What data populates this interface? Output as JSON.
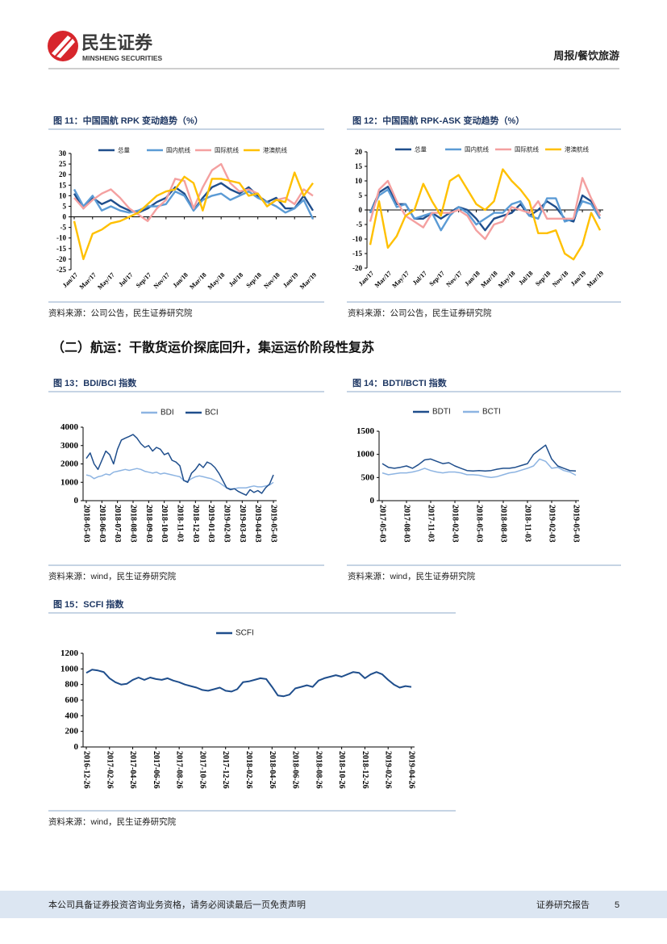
{
  "header": {
    "brand": "民生证券",
    "brand_en": "MINSHENG SECURITIES",
    "section": "周报/餐饮旅游"
  },
  "heading": "（二）航运：干散货运价探底回升，集运运价阶段性复苏",
  "chart_data": [
    {
      "type": "line",
      "title": "图 11：中国国航 RPK 变动趋势（%）",
      "source": "资料来源：公司公告，民生证券研究院",
      "categories": [
        "Jan/17",
        null,
        "Mar/17",
        null,
        "May/17",
        null,
        "Jul/17",
        null,
        "Sep/17",
        null,
        "Nov/17",
        null,
        "Jan/18",
        null,
        "Mar/18",
        null,
        "May/18",
        null,
        "Jul/18",
        null,
        "Sep/18",
        null,
        "Nov/18",
        null,
        "Jan/19",
        null,
        "Mar/19"
      ],
      "ylim": [
        -25,
        30
      ],
      "yticks": [
        -25,
        -20,
        -15,
        -10,
        -5,
        0,
        5,
        10,
        15,
        20,
        25,
        30
      ],
      "series": [
        {
          "name": "总量",
          "color": "#1f4e8c",
          "values": [
            11,
            4,
            9,
            6,
            8,
            5,
            3,
            2,
            4,
            7,
            9,
            14,
            11,
            3,
            9,
            14,
            16,
            13,
            11,
            14,
            10,
            7,
            9,
            4,
            4,
            10,
            3
          ]
        },
        {
          "name": "国内航线",
          "color": "#5b9bd5",
          "values": [
            13,
            5,
            10,
            3,
            5,
            3,
            2,
            3,
            5,
            5,
            6,
            12,
            10,
            3,
            8,
            10,
            11,
            8,
            10,
            12,
            9,
            7,
            5,
            2,
            4,
            8,
            -1
          ]
        },
        {
          "name": "国际航线",
          "color": "#f4a0a0",
          "values": [
            9,
            4,
            8,
            11,
            13,
            9,
            4,
            1,
            -2,
            4,
            8,
            18,
            17,
            4,
            14,
            22,
            25,
            16,
            12,
            13,
            11,
            5,
            8,
            9,
            6,
            13,
            10
          ]
        },
        {
          "name": "港澳航线",
          "color": "#ffc000",
          "values": [
            -2,
            -20,
            -8,
            -6,
            -3,
            -2,
            0,
            2,
            6,
            10,
            12,
            13,
            19,
            16,
            3,
            18,
            18,
            17,
            16,
            10,
            11,
            5,
            8,
            7,
            21,
            10,
            16
          ]
        }
      ]
    },
    {
      "type": "line",
      "title": "图 12：中国国航 RPK-ASK 变动趋势（%）",
      "source": "资料来源：公司公告，民生证券研究院",
      "categories": [
        "Jan/17",
        null,
        "Mar/17",
        null,
        "May/17",
        null,
        "Jul/17",
        null,
        "Sep/17",
        null,
        "Nov/17",
        null,
        "Jan/18",
        null,
        "Mar/18",
        null,
        "May/18",
        null,
        "Jul/18",
        null,
        "Sep/18",
        null,
        "Nov/18",
        null,
        "Jan/19",
        null,
        "Mar/19"
      ],
      "ylim": [
        -20,
        20
      ],
      "yticks": [
        -20,
        -15,
        -10,
        -5,
        0,
        5,
        10,
        15,
        20
      ],
      "series": [
        {
          "name": "总量",
          "color": "#1f4e8c",
          "values": [
            -1,
            6,
            8,
            2,
            2,
            -3,
            -3,
            -1,
            -3,
            -1,
            1,
            0,
            -3,
            -7,
            -3,
            -2,
            -1,
            2,
            -2,
            0,
            3,
            1,
            -3,
            -4,
            5,
            3,
            -2
          ]
        },
        {
          "name": "国内航线",
          "color": "#5b9bd5",
          "values": [
            -1,
            5,
            7,
            1,
            2,
            -3,
            -2,
            -1,
            -7,
            -2,
            1,
            -1,
            -5,
            -3,
            -1,
            -1,
            2,
            3,
            -2,
            -3,
            4,
            4,
            -4,
            -3,
            3,
            2,
            -3
          ]
        },
        {
          "name": "国际航线",
          "color": "#f4a0a0",
          "values": [
            -4,
            7,
            10,
            3,
            -2,
            -4,
            -6,
            -1,
            -1,
            -1,
            0,
            -2,
            -7,
            -10,
            -5,
            -4,
            1,
            0,
            -1,
            3,
            -3,
            -3,
            -3,
            -3,
            11,
            4,
            -2
          ]
        },
        {
          "name": "港澳航线",
          "color": "#ffc000",
          "values": [
            -12,
            3,
            -13,
            -9,
            -2,
            0,
            9,
            3,
            -2,
            10,
            12,
            7,
            2,
            0,
            3,
            14,
            10,
            7,
            3,
            -8,
            -8,
            -7,
            -15,
            -17,
            -12,
            -1,
            -7
          ]
        }
      ]
    },
    {
      "type": "line",
      "title": "图 13：BDI/BCI 指数",
      "source": "资料来源：wind，民生证券研究院",
      "categories": [
        "2018-05-03",
        null,
        null,
        null,
        "2018-06-03",
        null,
        null,
        null,
        "2018-07-03",
        null,
        null,
        null,
        "2018-08-03",
        null,
        null,
        null,
        "2018-09-03",
        null,
        null,
        null,
        "2018-10-03",
        null,
        null,
        null,
        "2018-11-03",
        null,
        null,
        null,
        "2018-12-03",
        null,
        null,
        null,
        "2019-01-03",
        null,
        null,
        null,
        "2019-02-03",
        null,
        null,
        null,
        "2019-03-03",
        null,
        null,
        null,
        "2019-04-03",
        null,
        null,
        null,
        "2019-05-03"
      ],
      "ylim": [
        0,
        4000
      ],
      "yticks": [
        0,
        1000,
        2000,
        3000,
        4000
      ],
      "series": [
        {
          "name": "BDI",
          "color": "#8db4e2",
          "values": [
            1400,
            1350,
            1200,
            1300,
            1350,
            1450,
            1400,
            1550,
            1600,
            1650,
            1700,
            1650,
            1700,
            1750,
            1700,
            1600,
            1550,
            1500,
            1550,
            1450,
            1500,
            1450,
            1400,
            1350,
            1300,
            1100,
            1050,
            1200,
            1300,
            1350,
            1300,
            1250,
            1200,
            1100,
            1000,
            850,
            700,
            650,
            650,
            700,
            700,
            700,
            750,
            800,
            750,
            750,
            800,
            850,
            1000
          ]
        },
        {
          "name": "BCI",
          "color": "#1f4e8c",
          "values": [
            2300,
            2600,
            2000,
            1700,
            2200,
            2700,
            2500,
            2000,
            2800,
            3300,
            3400,
            3500,
            3600,
            3400,
            3100,
            2900,
            3000,
            2700,
            2900,
            2800,
            2500,
            2600,
            2200,
            2100,
            1900,
            1100,
            1000,
            1500,
            1700,
            2000,
            1800,
            2100,
            2000,
            1800,
            1500,
            1100,
            700,
            600,
            650,
            500,
            400,
            300,
            600,
            450,
            550,
            400,
            700,
            900,
            1400
          ]
        }
      ]
    },
    {
      "type": "line",
      "title": "图 14：BDTI/BCTI 指数",
      "source": "资料来源：wind，民生证券研究院",
      "categories": [
        "2017-05-03",
        null,
        null,
        null,
        "2017-08-03",
        null,
        null,
        null,
        "2017-11-03",
        null,
        null,
        null,
        "2018-02-03",
        null,
        null,
        null,
        "2018-05-03",
        null,
        null,
        null,
        "2018-08-03",
        null,
        null,
        null,
        "2018-11-03",
        null,
        null,
        null,
        "2019-02-03",
        null,
        null,
        null,
        "2019-05-03"
      ],
      "ylim": [
        0,
        1500
      ],
      "yticks": [
        0,
        500,
        1000,
        1500
      ],
      "series": [
        {
          "name": "BDTI",
          "color": "#1f4e8c",
          "values": [
            800,
            720,
            700,
            720,
            750,
            700,
            780,
            880,
            900,
            850,
            800,
            820,
            750,
            700,
            650,
            640,
            650,
            640,
            650,
            680,
            700,
            700,
            720,
            760,
            800,
            1000,
            1100,
            1200,
            900,
            750,
            700,
            650,
            640
          ]
        },
        {
          "name": "BCTI",
          "color": "#8db4e2",
          "values": [
            600,
            560,
            580,
            600,
            600,
            620,
            650,
            700,
            650,
            620,
            600,
            620,
            620,
            600,
            560,
            560,
            550,
            520,
            500,
            520,
            560,
            600,
            620,
            660,
            700,
            750,
            900,
            850,
            700,
            720,
            650,
            620,
            550
          ]
        }
      ]
    },
    {
      "type": "line",
      "title": "图 15：SCFI 指数",
      "source": "资料来源：wind，民生证券研究院",
      "categories": [
        "2016-12-26",
        null,
        null,
        null,
        "2017-02-26",
        null,
        null,
        null,
        "2017-04-26",
        null,
        null,
        null,
        "2017-06-26",
        null,
        null,
        null,
        "2017-08-26",
        null,
        null,
        null,
        "2017-10-26",
        null,
        null,
        null,
        "2017-12-26",
        null,
        null,
        null,
        "2018-02-26",
        null,
        null,
        null,
        "2018-04-26",
        null,
        null,
        null,
        "2018-06-26",
        null,
        null,
        null,
        "2018-08-26",
        null,
        null,
        null,
        "2018-10-26",
        null,
        null,
        null,
        "2018-12-26",
        null,
        null,
        null,
        "2019-02-26",
        null,
        null,
        null,
        "2019-04-26"
      ],
      "ylim": [
        0,
        1200
      ],
      "yticks": [
        0,
        200,
        400,
        600,
        800,
        1000,
        1200
      ],
      "series": [
        {
          "name": "SCFI",
          "color": "#1f4e8c",
          "values": [
            950,
            990,
            980,
            960,
            880,
            830,
            800,
            810,
            860,
            890,
            860,
            890,
            870,
            860,
            880,
            850,
            830,
            800,
            780,
            760,
            730,
            720,
            740,
            760,
            720,
            710,
            740,
            830,
            840,
            860,
            880,
            870,
            770,
            660,
            650,
            670,
            750,
            770,
            790,
            770,
            850,
            880,
            900,
            920,
            900,
            930,
            960,
            950,
            880,
            930,
            960,
            930,
            860,
            800,
            760,
            780,
            770
          ]
        }
      ]
    }
  ],
  "footer": {
    "disclaimer": "本公司具备证券投资咨询业务资格，请务必阅读最后一页免责声明",
    "label": "证券研究报告",
    "page": 5
  }
}
